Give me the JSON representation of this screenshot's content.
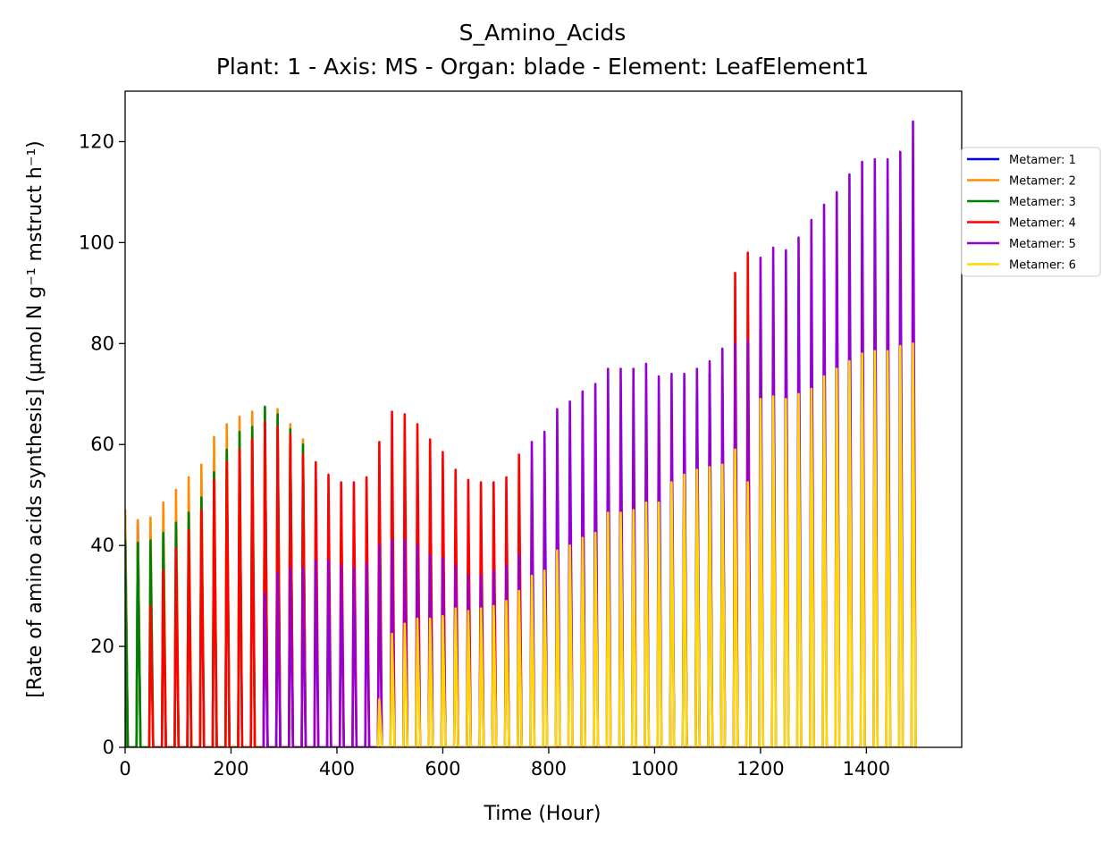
{
  "chart_data": {
    "type": "line",
    "title": "S_Amino_Acids",
    "subtitle": "Plant: 1 - Axis: MS - Organ: blade - Element: LeafElement1",
    "xlabel": "Time (Hour)",
    "ylabel": "[Rate of amino acids synthesis] (µmol N g⁻¹ mstruct h⁻¹)",
    "xlim": [
      0,
      1580
    ],
    "ylim": [
      0,
      130
    ],
    "x_ticks": [
      0,
      200,
      400,
      600,
      800,
      1000,
      1200,
      1400
    ],
    "y_ticks": [
      0,
      20,
      40,
      60,
      80,
      100,
      120
    ],
    "grid": false,
    "legend_position": "outside right",
    "series": [
      {
        "name": "Metamer: 1",
        "color": "#0000ff",
        "peaks": [
          [
            0,
            46
          ],
          [
            24,
            45
          ]
        ]
      },
      {
        "name": "Metamer: 2",
        "color": "#ff8c00",
        "peaks": [
          [
            0,
            47
          ],
          [
            24,
            45
          ],
          [
            48,
            45.5
          ],
          [
            72,
            48.5
          ],
          [
            96,
            51
          ],
          [
            120,
            53.5
          ],
          [
            144,
            56
          ],
          [
            168,
            61.5
          ],
          [
            192,
            64
          ],
          [
            216,
            65.5
          ],
          [
            240,
            66.5
          ],
          [
            264,
            67
          ],
          [
            288,
            67
          ],
          [
            312,
            64
          ],
          [
            336,
            61
          ]
        ]
      },
      {
        "name": "Metamer: 3",
        "color": "#008000",
        "peaks": [
          [
            0,
            41
          ],
          [
            24,
            40.5
          ],
          [
            48,
            41
          ],
          [
            72,
            42.5
          ],
          [
            96,
            44.5
          ],
          [
            120,
            46.5
          ],
          [
            144,
            49.5
          ],
          [
            168,
            54.5
          ],
          [
            192,
            59
          ],
          [
            216,
            62.5
          ],
          [
            240,
            63.5
          ],
          [
            264,
            67.5
          ],
          [
            288,
            66
          ],
          [
            312,
            63
          ],
          [
            336,
            60
          ],
          [
            1032,
            58
          ],
          [
            1056,
            61.5
          ],
          [
            1080,
            71
          ],
          [
            1104,
            74
          ],
          [
            1128,
            74
          ]
        ]
      },
      {
        "name": "Metamer: 4",
        "color": "#ff0000",
        "peaks": [
          [
            48,
            28
          ],
          [
            72,
            35
          ],
          [
            96,
            39.5
          ],
          [
            120,
            43
          ],
          [
            144,
            47
          ],
          [
            168,
            53
          ],
          [
            192,
            56.5
          ],
          [
            216,
            59
          ],
          [
            240,
            61
          ],
          [
            264,
            64.5
          ],
          [
            288,
            63.5
          ],
          [
            312,
            62
          ],
          [
            336,
            58
          ],
          [
            360,
            56.5
          ],
          [
            384,
            54
          ],
          [
            408,
            52.5
          ],
          [
            432,
            52.5
          ],
          [
            456,
            53.5
          ],
          [
            480,
            60.5
          ],
          [
            504,
            66.5
          ],
          [
            528,
            66
          ],
          [
            552,
            64
          ],
          [
            576,
            61
          ],
          [
            600,
            58.5
          ],
          [
            624,
            55
          ],
          [
            648,
            53
          ],
          [
            672,
            52.5
          ],
          [
            696,
            52.5
          ],
          [
            720,
            53.5
          ],
          [
            744,
            58
          ],
          [
            1152,
            94
          ],
          [
            1176,
            98
          ]
        ]
      },
      {
        "name": "Metamer: 5",
        "color": "#9400d3",
        "peaks": [
          [
            264,
            30.5
          ],
          [
            288,
            34.5
          ],
          [
            312,
            35.5
          ],
          [
            336,
            35.5
          ],
          [
            360,
            37
          ],
          [
            384,
            37
          ],
          [
            408,
            36
          ],
          [
            432,
            35.5
          ],
          [
            456,
            36.5
          ],
          [
            480,
            40
          ],
          [
            504,
            41
          ],
          [
            528,
            41
          ],
          [
            552,
            40
          ],
          [
            576,
            38
          ],
          [
            600,
            37.5
          ],
          [
            624,
            36
          ],
          [
            648,
            34
          ],
          [
            672,
            34
          ],
          [
            696,
            35
          ],
          [
            720,
            36
          ],
          [
            744,
            38
          ],
          [
            768,
            60.5
          ],
          [
            792,
            62.5
          ],
          [
            816,
            67
          ],
          [
            840,
            68.5
          ],
          [
            864,
            70.5
          ],
          [
            888,
            72
          ],
          [
            912,
            75
          ],
          [
            936,
            75
          ],
          [
            960,
            75
          ],
          [
            984,
            76
          ],
          [
            1008,
            73.5
          ],
          [
            1032,
            74
          ],
          [
            1056,
            74
          ],
          [
            1080,
            75
          ],
          [
            1104,
            76.5
          ],
          [
            1128,
            79
          ],
          [
            1152,
            80
          ],
          [
            1176,
            80.5
          ],
          [
            1200,
            97
          ],
          [
            1224,
            99
          ],
          [
            1248,
            98.5
          ],
          [
            1272,
            101
          ],
          [
            1296,
            104.5
          ],
          [
            1320,
            107.5
          ],
          [
            1344,
            110
          ],
          [
            1368,
            113.5
          ],
          [
            1392,
            116
          ],
          [
            1416,
            116.5
          ],
          [
            1440,
            116.5
          ],
          [
            1464,
            118
          ],
          [
            1488,
            124
          ]
        ]
      },
      {
        "name": "Metamer: 6",
        "color": "#ffd700",
        "peaks": [
          [
            480,
            9.5
          ],
          [
            504,
            22.5
          ],
          [
            528,
            24.5
          ],
          [
            552,
            25.5
          ],
          [
            576,
            25.5
          ],
          [
            600,
            26
          ],
          [
            624,
            27.5
          ],
          [
            648,
            27
          ],
          [
            672,
            27.5
          ],
          [
            696,
            28
          ],
          [
            720,
            29
          ],
          [
            744,
            31
          ],
          [
            768,
            34
          ],
          [
            792,
            35
          ],
          [
            816,
            39
          ],
          [
            840,
            40
          ],
          [
            864,
            41.5
          ],
          [
            888,
            42.5
          ],
          [
            912,
            46.5
          ],
          [
            936,
            46.5
          ],
          [
            960,
            47
          ],
          [
            984,
            48.5
          ],
          [
            1008,
            48.5
          ],
          [
            1032,
            52.5
          ],
          [
            1056,
            54
          ],
          [
            1080,
            55
          ],
          [
            1104,
            55.5
          ],
          [
            1128,
            56
          ],
          [
            1152,
            59
          ],
          [
            1176,
            52.5
          ],
          [
            1200,
            69
          ],
          [
            1224,
            69.5
          ],
          [
            1248,
            69
          ],
          [
            1272,
            70
          ],
          [
            1296,
            71
          ],
          [
            1320,
            73.5
          ],
          [
            1344,
            75
          ],
          [
            1368,
            76.5
          ],
          [
            1392,
            78
          ],
          [
            1416,
            78.5
          ],
          [
            1440,
            78.5
          ],
          [
            1464,
            79.5
          ],
          [
            1488,
            80
          ]
        ]
      }
    ]
  }
}
